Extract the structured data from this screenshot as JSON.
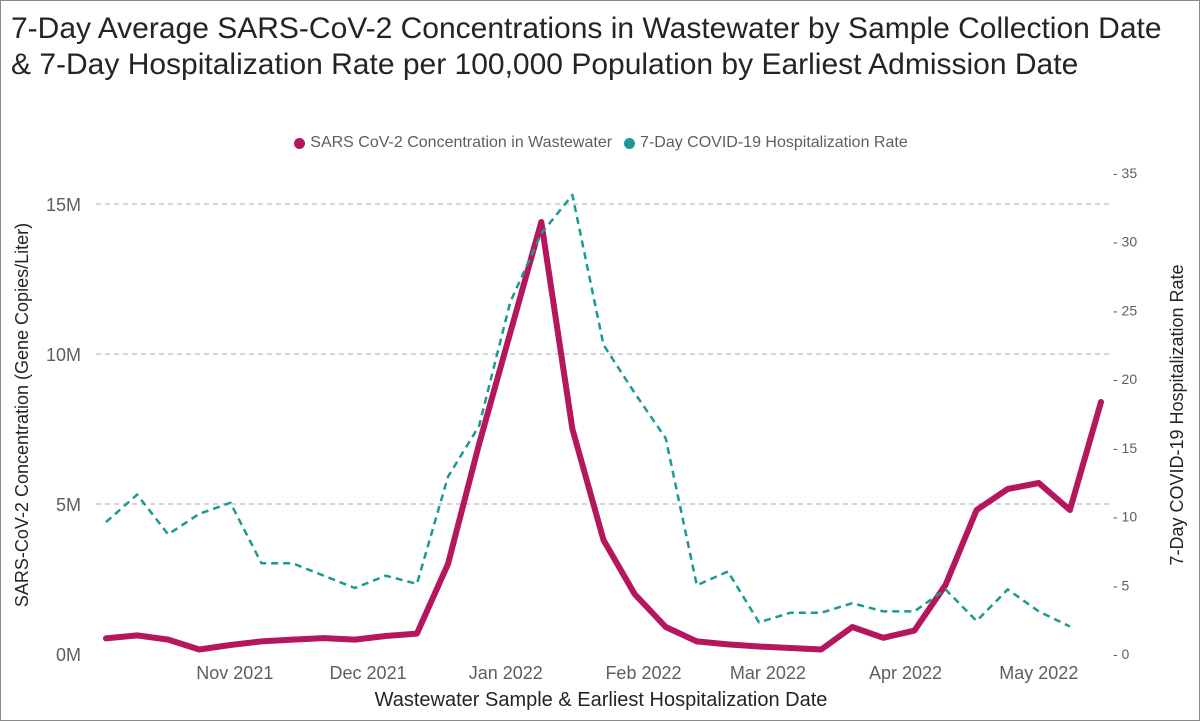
{
  "title": "7-Day Average SARS-CoV-2 Concentrations in Wastewater by Sample Collection Date & 7-Day Hospitalization Rate per 100,000 Population by Earliest Admission Date",
  "legend": [
    {
      "label": "SARS CoV-2 Concentration in Wastewater",
      "color": "#b5165e"
    },
    {
      "label": "7-Day COVID-19 Hospitalization Rate",
      "color": "#1a9a93"
    }
  ],
  "chart_data": {
    "type": "line",
    "title": "7-Day Average SARS-CoV-2 Concentrations in Wastewater by Sample Collection Date & 7-Day Hospitalization Rate per 100,000 Population by Earliest Admission Date",
    "xlabel": "Wastewater Sample & Earliest Hospitalization Date",
    "ylabel": "SARS-CoV-2 Concentration (Gene Copies/Liter)",
    "y2label": "7-Day COVID-19 Hospitalization Rate",
    "x_ticks": [
      "Nov 2021",
      "Dec 2021",
      "Jan 2022",
      "Feb 2022",
      "Mar 2022",
      "Apr 2022",
      "May 2022"
    ],
    "y_ticks": [
      "0M",
      "5M",
      "10M",
      "15M"
    ],
    "y2_ticks": [
      "0",
      "5",
      "10",
      "15",
      "20",
      "25",
      "30",
      "35"
    ],
    "ylim": [
      0,
      15000000
    ],
    "y2lim": [
      0,
      35
    ],
    "grid": true,
    "legend_position": "top-center",
    "series": [
      {
        "name": "SARS CoV-2 Concentration in Wastewater",
        "axis": "left",
        "color": "#b5165e",
        "style": "solid",
        "points": [
          [
            "2021-10-17",
            520000
          ],
          [
            "2021-10-24",
            620000
          ],
          [
            "2021-10-31",
            480000
          ],
          [
            "2021-11-07",
            150000
          ],
          [
            "2021-11-14",
            300000
          ],
          [
            "2021-11-21",
            420000
          ],
          [
            "2021-11-28",
            480000
          ],
          [
            "2021-12-05",
            530000
          ],
          [
            "2021-12-12",
            480000
          ],
          [
            "2021-12-19",
            600000
          ],
          [
            "2021-12-26",
            680000
          ],
          [
            "2022-01-02",
            3000000
          ],
          [
            "2022-01-09",
            7000000
          ],
          [
            "2022-01-16",
            10700000
          ],
          [
            "2022-01-23",
            14400000
          ],
          [
            "2022-01-30",
            7500000
          ],
          [
            "2022-02-06",
            3800000
          ],
          [
            "2022-02-13",
            2000000
          ],
          [
            "2022-02-20",
            900000
          ],
          [
            "2022-02-27",
            420000
          ],
          [
            "2022-03-06",
            320000
          ],
          [
            "2022-03-13",
            250000
          ],
          [
            "2022-03-20",
            200000
          ],
          [
            "2022-03-27",
            150000
          ],
          [
            "2022-04-03",
            900000
          ],
          [
            "2022-04-10",
            540000
          ],
          [
            "2022-04-17",
            780000
          ],
          [
            "2022-04-24",
            2300000
          ],
          [
            "2022-05-01",
            4800000
          ],
          [
            "2022-05-08",
            5500000
          ],
          [
            "2022-05-15",
            5700000
          ],
          [
            "2022-05-22",
            4800000
          ],
          [
            "2022-05-29",
            8400000
          ]
        ]
      },
      {
        "name": "7-Day COVID-19 Hospitalization Rate",
        "axis": "right",
        "color": "#1a9a93",
        "style": "dashed",
        "points": [
          [
            "2021-10-17",
            9.6
          ],
          [
            "2021-10-24",
            11.6
          ],
          [
            "2021-10-31",
            8.7
          ],
          [
            "2021-11-07",
            10.2
          ],
          [
            "2021-11-14",
            11.0
          ],
          [
            "2021-11-21",
            6.6
          ],
          [
            "2021-11-28",
            6.6
          ],
          [
            "2021-12-05",
            5.7
          ],
          [
            "2021-12-12",
            4.8
          ],
          [
            "2021-12-19",
            5.7
          ],
          [
            "2021-12-26",
            5.1
          ],
          [
            "2022-01-02",
            12.9
          ],
          [
            "2022-01-09",
            16.6
          ],
          [
            "2022-01-16",
            25.6
          ],
          [
            "2022-01-23",
            30.6
          ],
          [
            "2022-01-30",
            33.4
          ],
          [
            "2022-02-06",
            22.5
          ],
          [
            "2022-02-13",
            19.0
          ],
          [
            "2022-02-20",
            15.7
          ],
          [
            "2022-02-27",
            5.0
          ],
          [
            "2022-03-06",
            6.0
          ],
          [
            "2022-03-13",
            2.3
          ],
          [
            "2022-03-20",
            3.0
          ],
          [
            "2022-03-27",
            3.0
          ],
          [
            "2022-04-03",
            3.7
          ],
          [
            "2022-04-10",
            3.1
          ],
          [
            "2022-04-17",
            3.1
          ],
          [
            "2022-04-24",
            4.7
          ],
          [
            "2022-05-01",
            2.4
          ],
          [
            "2022-05-08",
            4.7
          ],
          [
            "2022-05-15",
            3.1
          ],
          [
            "2022-05-22",
            2.0
          ]
        ]
      }
    ]
  }
}
